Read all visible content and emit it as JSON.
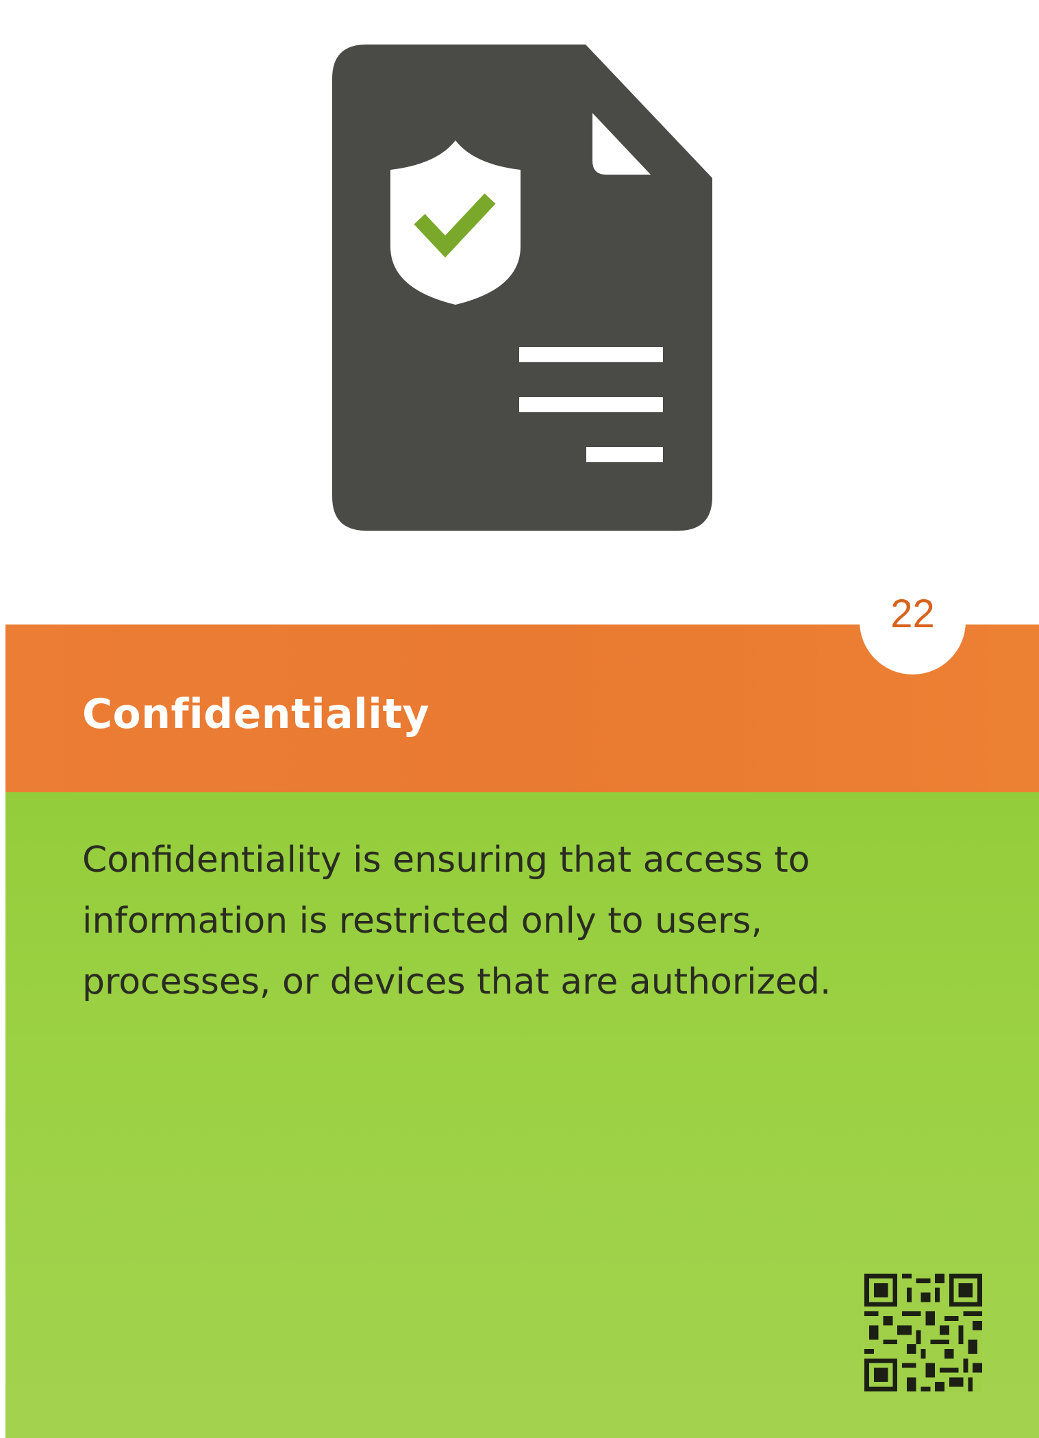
{
  "card": {
    "number": "22",
    "title": "Confidentiality",
    "description": "Confidentiality is ensuring that access to information is restricted only to users, processes, or devices that are authorized."
  },
  "icons": {
    "main": "secure-document-icon",
    "shield": "shield-icon",
    "check": "checkmark-icon",
    "qr": "qr-code-icon"
  },
  "colors": {
    "document": "#4a4a47",
    "title_band": "#e97a31",
    "description_panel": "#9bd143",
    "check": "#7aa82a",
    "number": "#d8631c"
  }
}
